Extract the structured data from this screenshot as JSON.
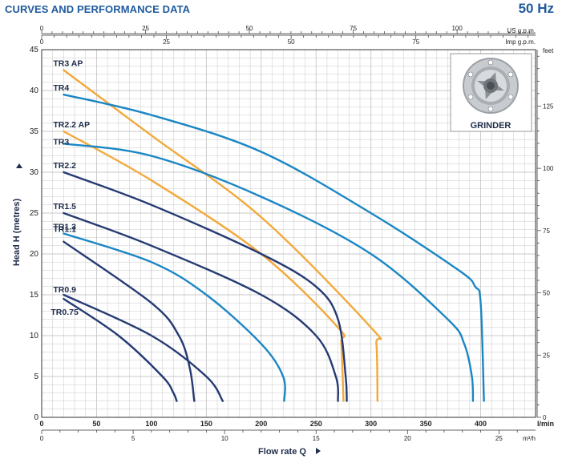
{
  "header": {
    "title": "CURVES AND PERFORMANCE DATA",
    "frequency": "50 Hz"
  },
  "inset": {
    "label": "GRINDER",
    "icon": "grinder-impeller-icon"
  },
  "colors": {
    "accent": "#1f5a9c",
    "navy": "#253a73",
    "blue": "#1a86c4",
    "orange": "#f2a93b",
    "grid": "#c8c8c8",
    "axis": "#333333"
  },
  "chart_data": {
    "type": "line",
    "title": "",
    "xlabel": "Flow rate Q",
    "ylabel": "Head H (metres)",
    "x_unit": "l/min",
    "xlim": [
      0,
      450
    ],
    "ylim": [
      0,
      45
    ],
    "grid": true,
    "x_ticks": [
      "0",
      "50",
      "100",
      "150",
      "200",
      "250",
      "300",
      "350",
      "400"
    ],
    "y_ticks": [
      "0",
      "5",
      "10",
      "15",
      "20",
      "25",
      "30",
      "35",
      "40",
      "45"
    ],
    "secondary_axes": {
      "us_gpm": {
        "unit": "US g.p.m.",
        "ticks": [
          "0",
          "25",
          "50",
          "75",
          "100"
        ]
      },
      "imp_gpm": {
        "unit": "Imp g.p.m.",
        "ticks": [
          "0",
          "25",
          "50",
          "75"
        ]
      },
      "m3h": {
        "unit": "m³/h",
        "ticks": [
          "0",
          "5",
          "10",
          "15",
          "20",
          "25"
        ]
      },
      "feet": {
        "unit": "feet",
        "ticks": [
          "0",
          "25",
          "50",
          "75",
          "100",
          "125"
        ]
      }
    },
    "series": [
      {
        "name": "TR3 AP",
        "color": "orange",
        "points": [
          [
            20,
            42.5
          ],
          [
            100,
            34.5
          ],
          [
            200,
            24.5
          ],
          [
            300,
            11
          ],
          [
            305,
            9
          ],
          [
            306,
            2
          ]
        ]
      },
      {
        "name": "TR4",
        "color": "blue",
        "points": [
          [
            20,
            39.5
          ],
          [
            100,
            37
          ],
          [
            200,
            32.5
          ],
          [
            300,
            25
          ],
          [
            380,
            18
          ],
          [
            395,
            16
          ],
          [
            400,
            14
          ],
          [
            403,
            2
          ]
        ]
      },
      {
        "name": "TR2.2 AP",
        "color": "orange",
        "points": [
          [
            20,
            35
          ],
          [
            100,
            29
          ],
          [
            200,
            20
          ],
          [
            270,
            11
          ],
          [
            273,
            9
          ],
          [
            275,
            2
          ]
        ]
      },
      {
        "name": "TR3",
        "color": "blue",
        "points": [
          [
            20,
            33.5
          ],
          [
            100,
            32
          ],
          [
            200,
            27
          ],
          [
            300,
            20
          ],
          [
            370,
            12
          ],
          [
            385,
            9
          ],
          [
            392,
            5
          ],
          [
            393,
            2
          ]
        ]
      },
      {
        "name": "TR2.2",
        "color": "navy",
        "points": [
          [
            20,
            30
          ],
          [
            100,
            26
          ],
          [
            200,
            20
          ],
          [
            250,
            16
          ],
          [
            270,
            12
          ],
          [
            277,
            5
          ],
          [
            278,
            2
          ]
        ]
      },
      {
        "name": "TR1.5",
        "color": "navy",
        "points": [
          [
            20,
            25
          ],
          [
            100,
            21
          ],
          [
            200,
            15
          ],
          [
            250,
            10
          ],
          [
            268,
            5
          ],
          [
            270,
            2
          ]
        ]
      },
      {
        "name": "TR1.3",
        "color": "blue",
        "points": [
          [
            20,
            22.5
          ],
          [
            100,
            19
          ],
          [
            150,
            15
          ],
          [
            200,
            9
          ],
          [
            220,
            5
          ],
          [
            221,
            2
          ]
        ]
      },
      {
        "name": "TR1.1",
        "color": "navy",
        "points": [
          [
            20,
            21.5
          ],
          [
            100,
            14
          ],
          [
            125,
            10
          ],
          [
            135,
            6
          ],
          [
            139,
            2
          ]
        ]
      },
      {
        "name": "TR0.9",
        "color": "navy",
        "points": [
          [
            20,
            15
          ],
          [
            100,
            10
          ],
          [
            150,
            5
          ],
          [
            165,
            2
          ]
        ]
      },
      {
        "name": "TR0.75",
        "color": "navy",
        "points": [
          [
            20,
            14.5
          ],
          [
            70,
            10
          ],
          [
            110,
            5
          ],
          [
            120,
            3
          ],
          [
            123,
            2
          ]
        ]
      }
    ]
  }
}
